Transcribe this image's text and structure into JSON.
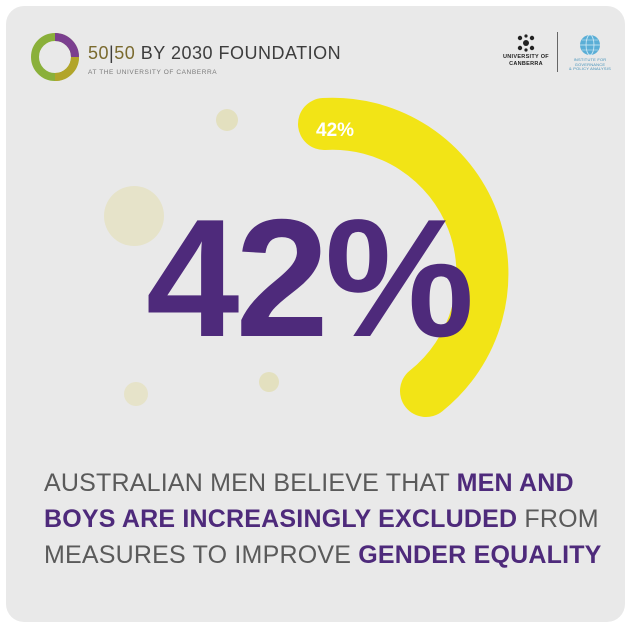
{
  "colors": {
    "purple": "#4e2a7b",
    "yellow": "#f2e416",
    "background": "#e9e9e9",
    "text_gray": "#5a5a5a"
  },
  "header": {
    "logo_icon": "ring-logo-icon",
    "org_part1": "50",
    "org_part2": "50",
    "org_part3": "BY 2030 FOUNDATION",
    "org_sub": "AT THE UNIVERSITY OF CANBERRA",
    "partner_a_line1": "UNIVERSITY OF",
    "partner_a_line2": "CANBERRA",
    "partner_b_line1": "INSTITUTE FOR",
    "partner_b_line2": "GOVERNANCE",
    "partner_b_line3": "& POLICY ANALYSIS"
  },
  "stat": {
    "value": "42%",
    "arc_label": "42%",
    "fraction": 0.42
  },
  "caption": {
    "p1": "AUSTRALIAN MEN BELIEVE THAT ",
    "h1": "MEN AND BOYS ARE INCREASINGLY EXCLUDED",
    "p2": " FROM MEASURES TO IMPROVE ",
    "h2": "GENDER EQUALITY"
  }
}
